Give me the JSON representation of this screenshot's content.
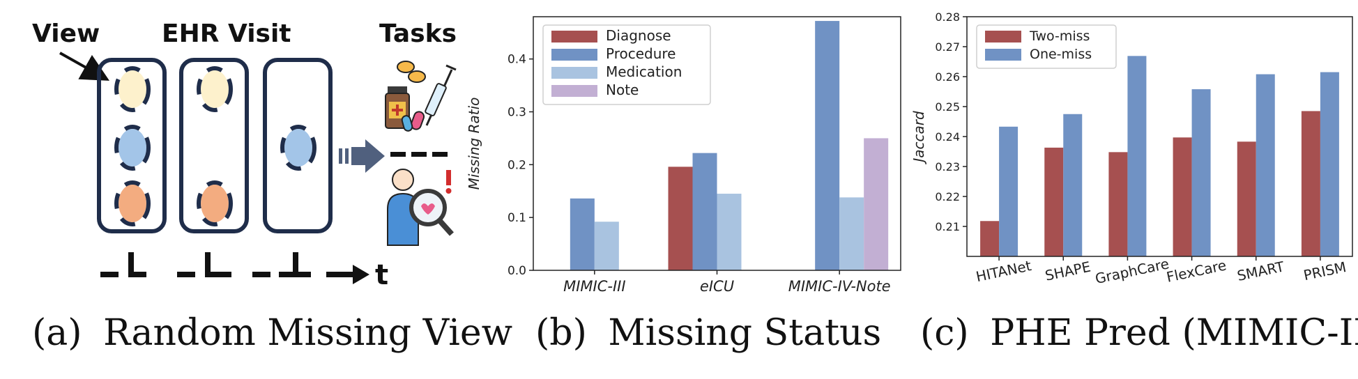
{
  "panel_a": {
    "label_view": "View",
    "label_ehr_visit": "EHR Visit",
    "label_tasks": "Tasks",
    "label_t": "t",
    "caption_letter": "(a)",
    "caption_text": "Random Missing View",
    "colors": {
      "border": "#1f2d4a",
      "yellow": "#fdf1cc",
      "blue": "#a3c5e8",
      "orange": "#f3ac80",
      "arrow": "#50607e"
    },
    "icons": [
      "medicine-bottle-icon",
      "pills-icon",
      "syringe-icon",
      "doctor-magnifier-icon",
      "alert-icon"
    ]
  },
  "panel_b": {
    "caption_letter": "(b)",
    "caption_text": "Missing Status",
    "chart_data": {
      "type": "bar",
      "categories": [
        "MIMIC-III",
        "eICU",
        "MIMIC-IV-Note"
      ],
      "series": [
        {
          "name": "Diagnose",
          "color": "#a65050",
          "values": [
            null,
            0.196,
            null
          ]
        },
        {
          "name": "Procedure",
          "color": "#7092c4",
          "values": [
            0.136,
            0.222,
            0.472
          ]
        },
        {
          "name": "Medication",
          "color": "#a9c3e0",
          "values": [
            0.092,
            0.145,
            0.138
          ]
        },
        {
          "name": "Note",
          "color": "#c2afd3",
          "values": [
            null,
            null,
            0.25
          ]
        }
      ],
      "ylabel": "Missing Ratio",
      "ylim": [
        0,
        0.48
      ],
      "yticks": [
        "0.0",
        "0.1",
        "0.2",
        "0.3",
        "0.4"
      ],
      "legend": "top-left"
    }
  },
  "panel_c": {
    "caption_letter": "(c)",
    "caption_text": "PHE Pred (MIMIC-III)",
    "chart_data": {
      "type": "bar",
      "categories": [
        "HITANet",
        "SHAPE",
        "GraphCare",
        "FlexCare",
        "SMART",
        "PRISM"
      ],
      "series": [
        {
          "name": "Two-miss",
          "color": "#a65050",
          "values": [
            0.2118,
            0.2363,
            0.2348,
            0.2397,
            0.2383,
            0.2485
          ]
        },
        {
          "name": "One-miss",
          "color": "#7092c4",
          "values": [
            0.2433,
            0.2475,
            0.2669,
            0.2558,
            0.2608,
            0.2615
          ]
        }
      ],
      "ylabel": "Jaccard",
      "ylim": [
        0.2,
        0.28
      ],
      "yticks": [
        "0.21",
        "0.22",
        "0.23",
        "0.24",
        "0.25",
        "0.26",
        "0.27",
        "0.28"
      ],
      "legend": "top-left"
    }
  }
}
